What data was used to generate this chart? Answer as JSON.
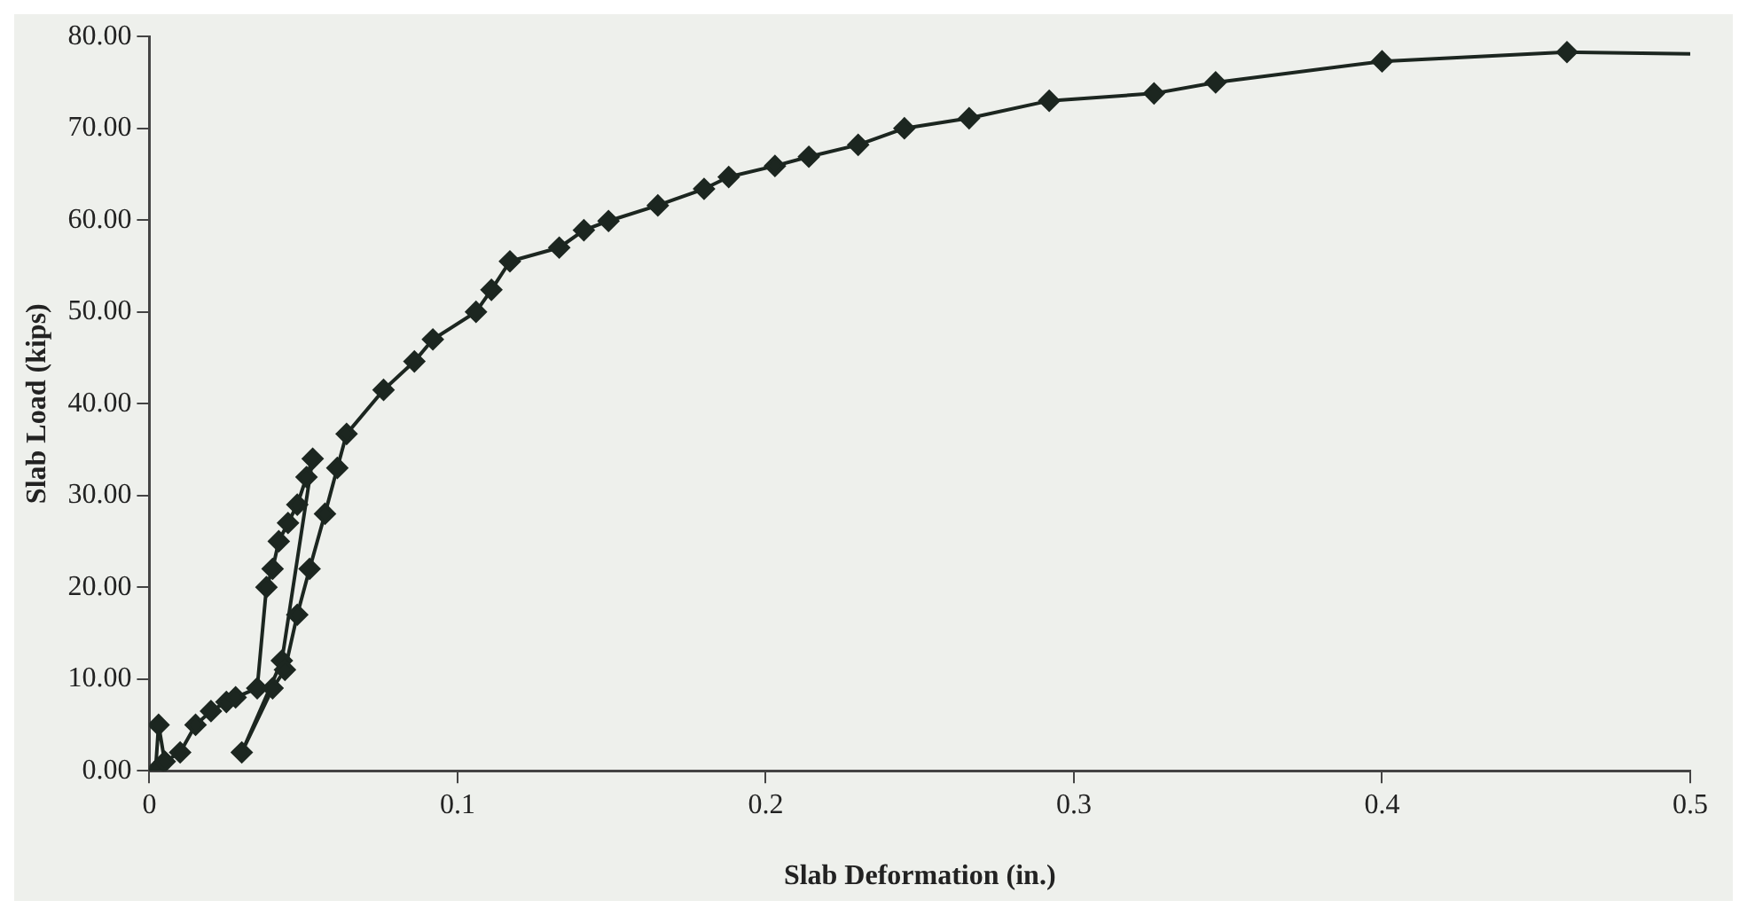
{
  "chart_data": {
    "type": "line",
    "xlabel": "Slab Deformation (in.)",
    "ylabel": "Slab Load (kips)",
    "series": [
      {
        "color": "#1c2620",
        "x": [
          0.002,
          0.003,
          0.005,
          0.01,
          0.015,
          0.02,
          0.025,
          0.028,
          0.035,
          0.038,
          0.04,
          0.042,
          0.045,
          0.048,
          0.051,
          0.053,
          0.043,
          0.03,
          0.04,
          0.044,
          0.048,
          0.052,
          0.057,
          0.061,
          0.064,
          0.076,
          0.086,
          0.092,
          0.106,
          0.111,
          0.117,
          0.133,
          0.141,
          0.149,
          0.165,
          0.18,
          0.188,
          0.203,
          0.214,
          0.23,
          0.245,
          0.266,
          0.292,
          0.326,
          0.346,
          0.4,
          0.46,
          0.5
        ],
        "values": [
          0,
          5,
          1,
          2,
          5,
          6.5,
          7.5,
          8,
          9,
          20,
          22,
          25,
          27,
          29,
          32,
          34,
          12,
          2,
          9,
          11,
          17,
          22,
          28,
          33,
          36.7,
          41.5,
          44.6,
          47,
          50,
          52.4,
          55.5,
          57,
          58.9,
          59.9,
          61.6,
          63.4,
          64.7,
          65.9,
          66.9,
          68.2,
          70,
          71.1,
          73,
          73.8,
          75,
          77.3,
          78.3,
          78.1
        ]
      }
    ],
    "xlim": [
      0,
      0.5
    ],
    "xticks": [
      0,
      0.1,
      0.2,
      0.3,
      0.4,
      0.5
    ],
    "ylim": [
      0,
      80
    ],
    "yticks": [
      {
        "value": 0,
        "label": "0.00"
      },
      {
        "value": 10,
        "label": "10.00"
      },
      {
        "value": 20,
        "label": "20.00"
      },
      {
        "value": 30,
        "label": "30.00"
      },
      {
        "value": 40,
        "label": "40.00"
      },
      {
        "value": 50,
        "label": "50.00"
      },
      {
        "value": 60,
        "label": "60.00"
      },
      {
        "value": 70,
        "label": "70.00"
      },
      {
        "value": 80,
        "label": "80.00"
      }
    ],
    "grid": false,
    "legend": false,
    "marker": "diamond",
    "line_style": "solid"
  }
}
